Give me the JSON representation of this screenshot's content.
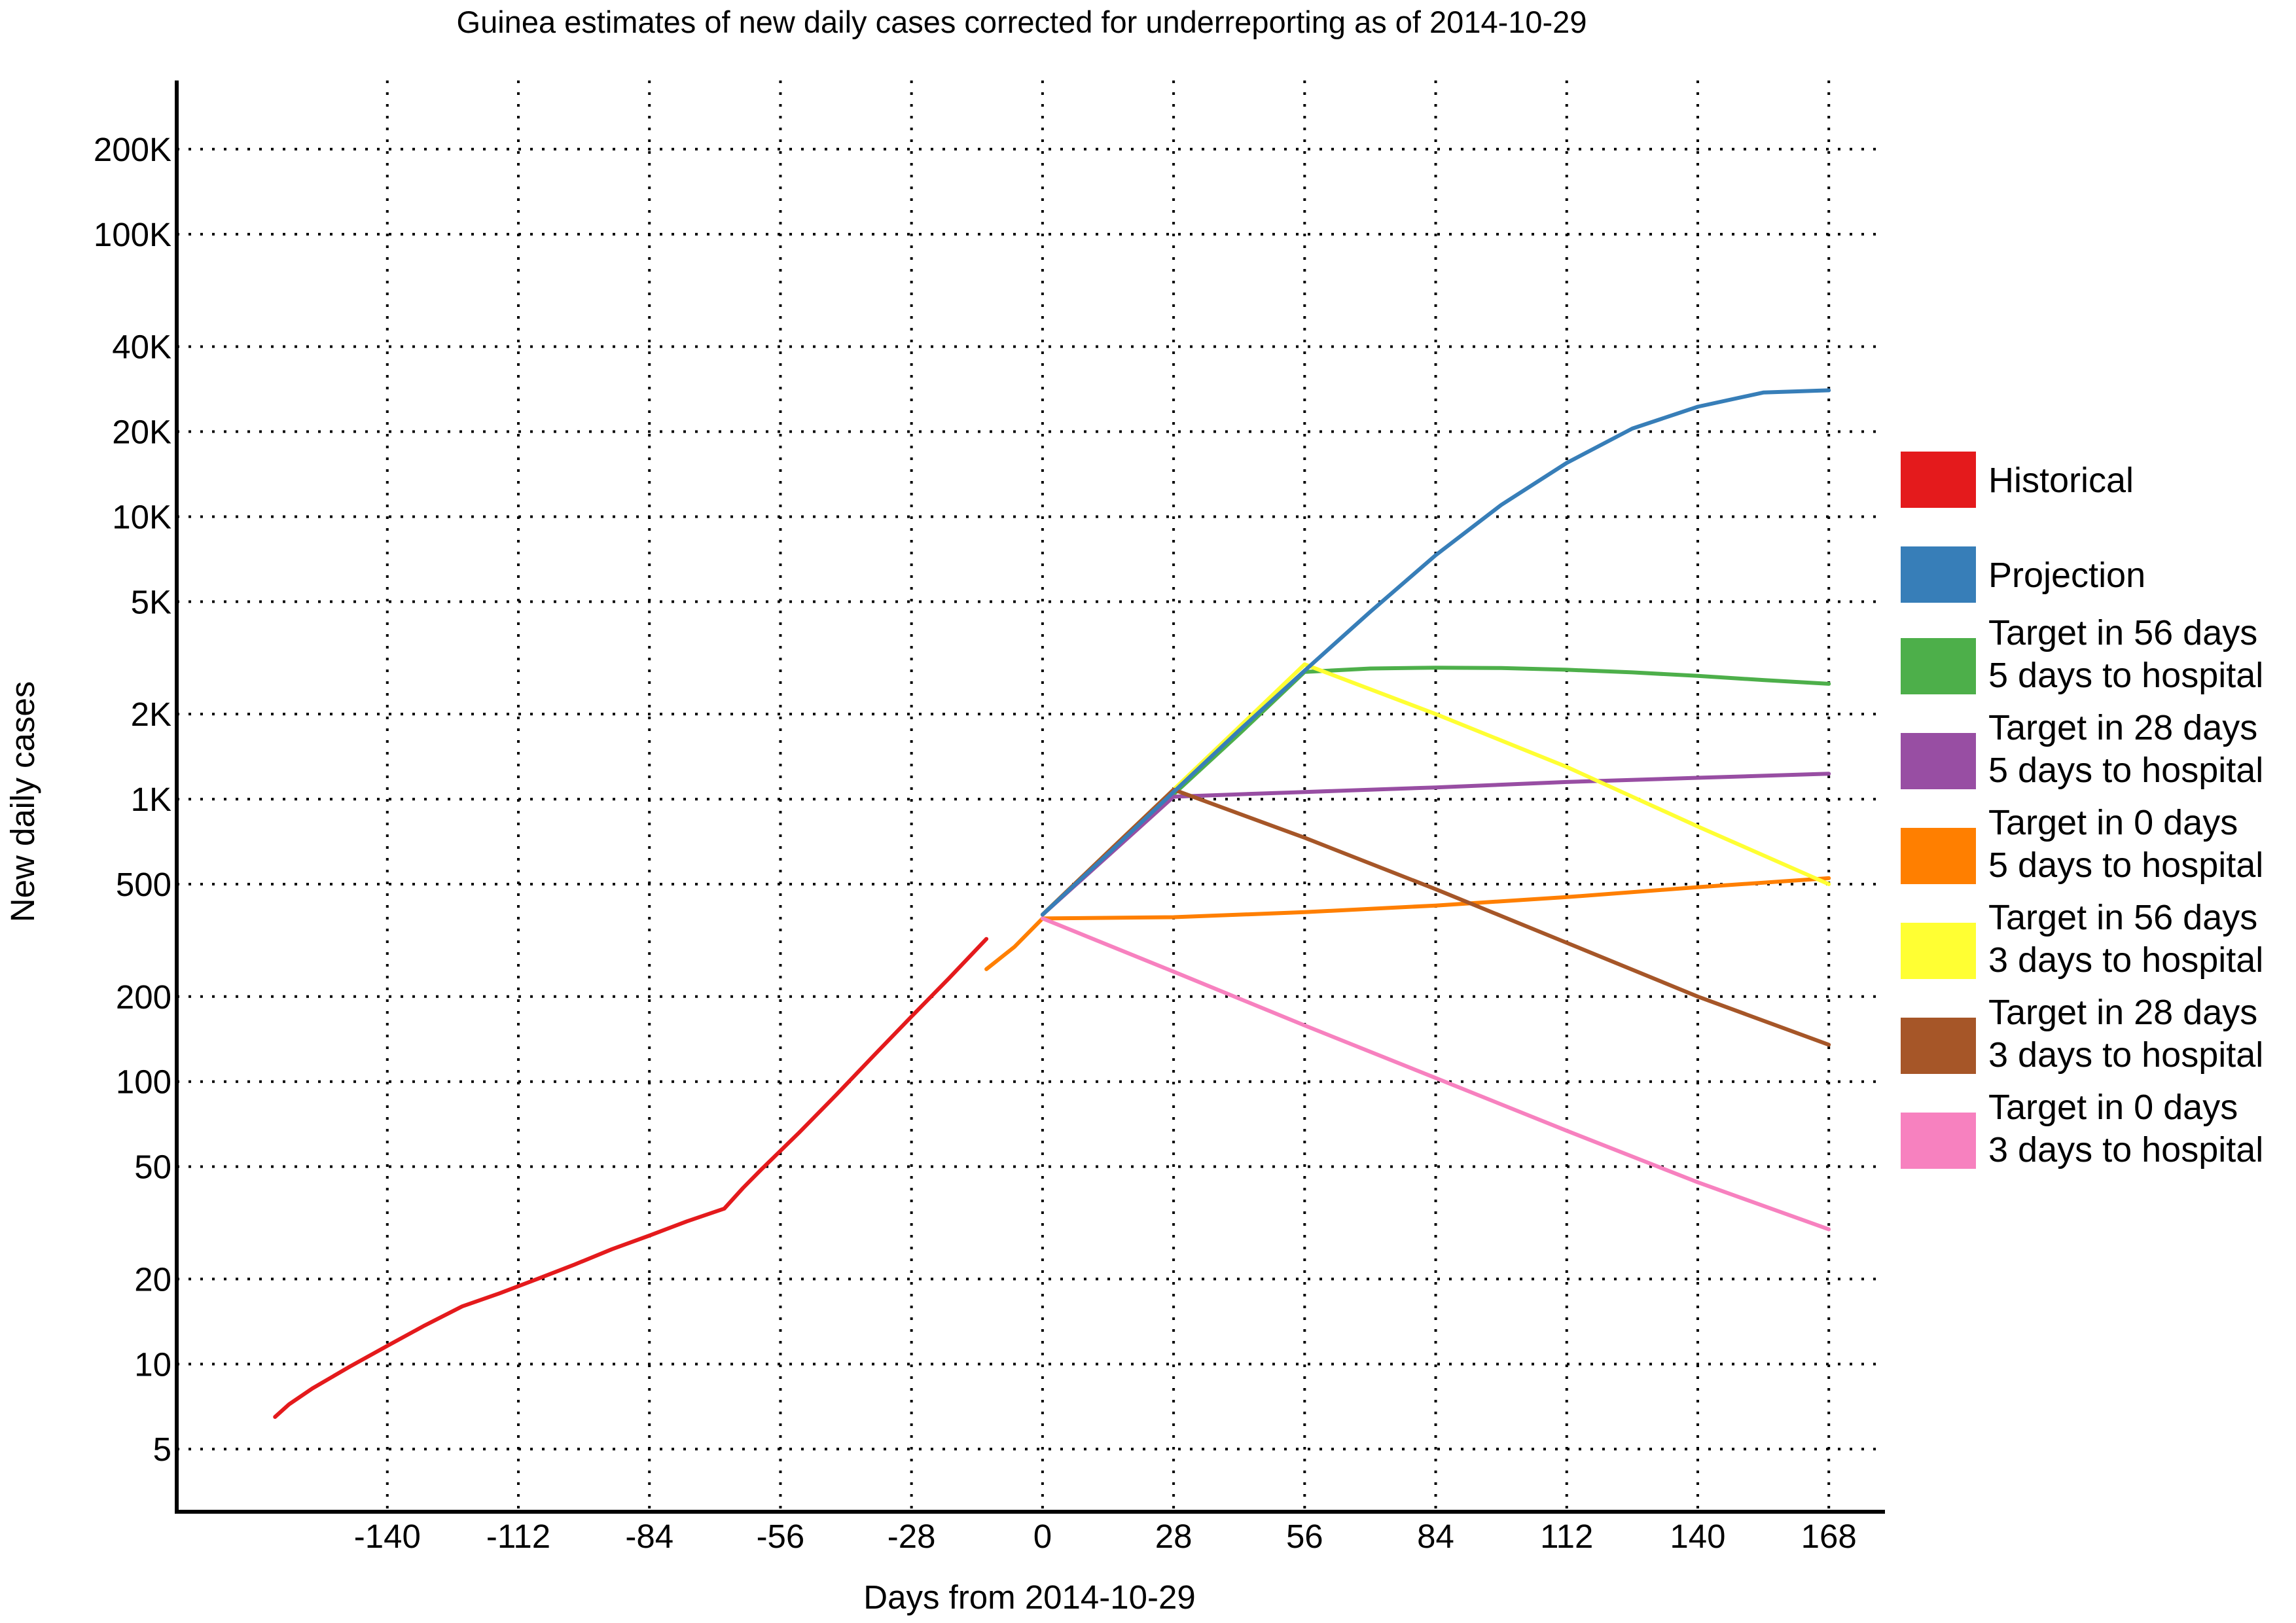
{
  "chart_data": {
    "type": "line",
    "title": "Guinea estimates of new daily cases corrected for underreporting as of 2014-10-29",
    "xlabel": "Days from 2014-10-29",
    "ylabel": "New daily cases",
    "y_scale": "log",
    "xlim": [
      -185,
      180
    ],
    "ylim": [
      3,
      350000
    ],
    "grid": true,
    "legend_position": "right",
    "x_ticks": [
      -140,
      -112,
      -84,
      -56,
      -28,
      0,
      28,
      56,
      84,
      112,
      140,
      168
    ],
    "x_tick_labels": [
      "-140",
      "-112",
      "-84",
      "-56",
      "-28",
      "0",
      "28",
      "56",
      "84",
      "112",
      "140",
      "168"
    ],
    "y_ticks": [
      5,
      10,
      20,
      50,
      100,
      200,
      500,
      1000,
      2000,
      5000,
      10000,
      20000,
      40000,
      100000,
      200000
    ],
    "y_tick_labels": [
      "5",
      "10",
      "20",
      "50",
      "100",
      "200",
      "500",
      "1K",
      "2K",
      "5K",
      "10K",
      "20K",
      "40K",
      "100K",
      "200K"
    ],
    "series": [
      {
        "name": "Historical",
        "legend_lines": [
          "Historical"
        ],
        "color": "#e41a1c",
        "x": [
          -164,
          -161,
          -156,
          -148,
          -140,
          -132,
          -124,
          -116,
          -108,
          -100,
          -92,
          -84,
          -76,
          -68,
          -64,
          -60,
          -52,
          -44,
          -36,
          -28,
          -20,
          -12
        ],
        "y": [
          6.5,
          7.2,
          8.2,
          9.8,
          11.6,
          13.7,
          16.0,
          17.8,
          20.0,
          22.5,
          25.5,
          28.5,
          32.0,
          35.5,
          42,
          49,
          66,
          90,
          124,
          170,
          232,
          320
        ]
      },
      {
        "name": "Projection",
        "legend_lines": [
          "Projection"
        ],
        "color": "#377eb8",
        "x": [
          0,
          14,
          28,
          42,
          56,
          70,
          84,
          98,
          112,
          126,
          140,
          154,
          168
        ],
        "y": [
          390,
          640,
          1060,
          1750,
          2850,
          4600,
          7300,
          11000,
          15500,
          20500,
          24500,
          27500,
          28000
        ]
      },
      {
        "name": "Target in 56 days 5 days to hospital",
        "legend_lines": [
          "Target in 56 days",
          "5 days to hospital"
        ],
        "color": "#4daf4a",
        "x": [
          0,
          14,
          28,
          42,
          56,
          70,
          84,
          98,
          112,
          126,
          140,
          154,
          168
        ],
        "y": [
          390,
          640,
          1040,
          1700,
          2820,
          2900,
          2920,
          2910,
          2870,
          2810,
          2730,
          2640,
          2560
        ]
      },
      {
        "name": "Target in 28 days 5 days to hospital",
        "legend_lines": [
          "Target in 28 days",
          "5 days to hospital"
        ],
        "color": "#984ea3",
        "x": [
          0,
          14,
          28,
          42,
          56,
          84,
          112,
          140,
          168
        ],
        "y": [
          390,
          630,
          1020,
          1040,
          1060,
          1100,
          1150,
          1190,
          1230
        ]
      },
      {
        "name": "Target in 0 days 5 days to hospital",
        "legend_lines": [
          "Target in 0 days",
          "5 days to hospital"
        ],
        "color": "#ff7f00",
        "x": [
          -12,
          -6,
          0,
          28,
          56,
          84,
          112,
          140,
          168
        ],
        "y": [
          250,
          300,
          378,
          382,
          398,
          420,
          450,
          488,
          525
        ]
      },
      {
        "name": "Target in 56 days 3 days to hospital",
        "legend_lines": [
          "Target in 56 days",
          "3 days to hospital"
        ],
        "color": "#ffff33",
        "x": [
          0,
          14,
          28,
          42,
          56,
          84,
          112,
          140,
          168
        ],
        "y": [
          390,
          650,
          1080,
          1800,
          3000,
          2000,
          1300,
          800,
          500
        ]
      },
      {
        "name": "Target in 28 days 3 days to hospital",
        "legend_lines": [
          "Target in 28 days",
          "3 days to hospital"
        ],
        "color": "#a65628",
        "x": [
          0,
          14,
          28,
          56,
          84,
          112,
          140,
          168
        ],
        "y": [
          390,
          650,
          1080,
          730,
          480,
          310,
          200,
          135
        ]
      },
      {
        "name": "Target in 0 days 3 days to hospital",
        "legend_lines": [
          "Target in 0 days",
          "3 days to hospital"
        ],
        "color": "#f781bf",
        "x": [
          0,
          28,
          56,
          84,
          112,
          140,
          168
        ],
        "y": [
          378,
          245,
          158,
          103,
          67,
          44,
          30
        ]
      }
    ]
  }
}
